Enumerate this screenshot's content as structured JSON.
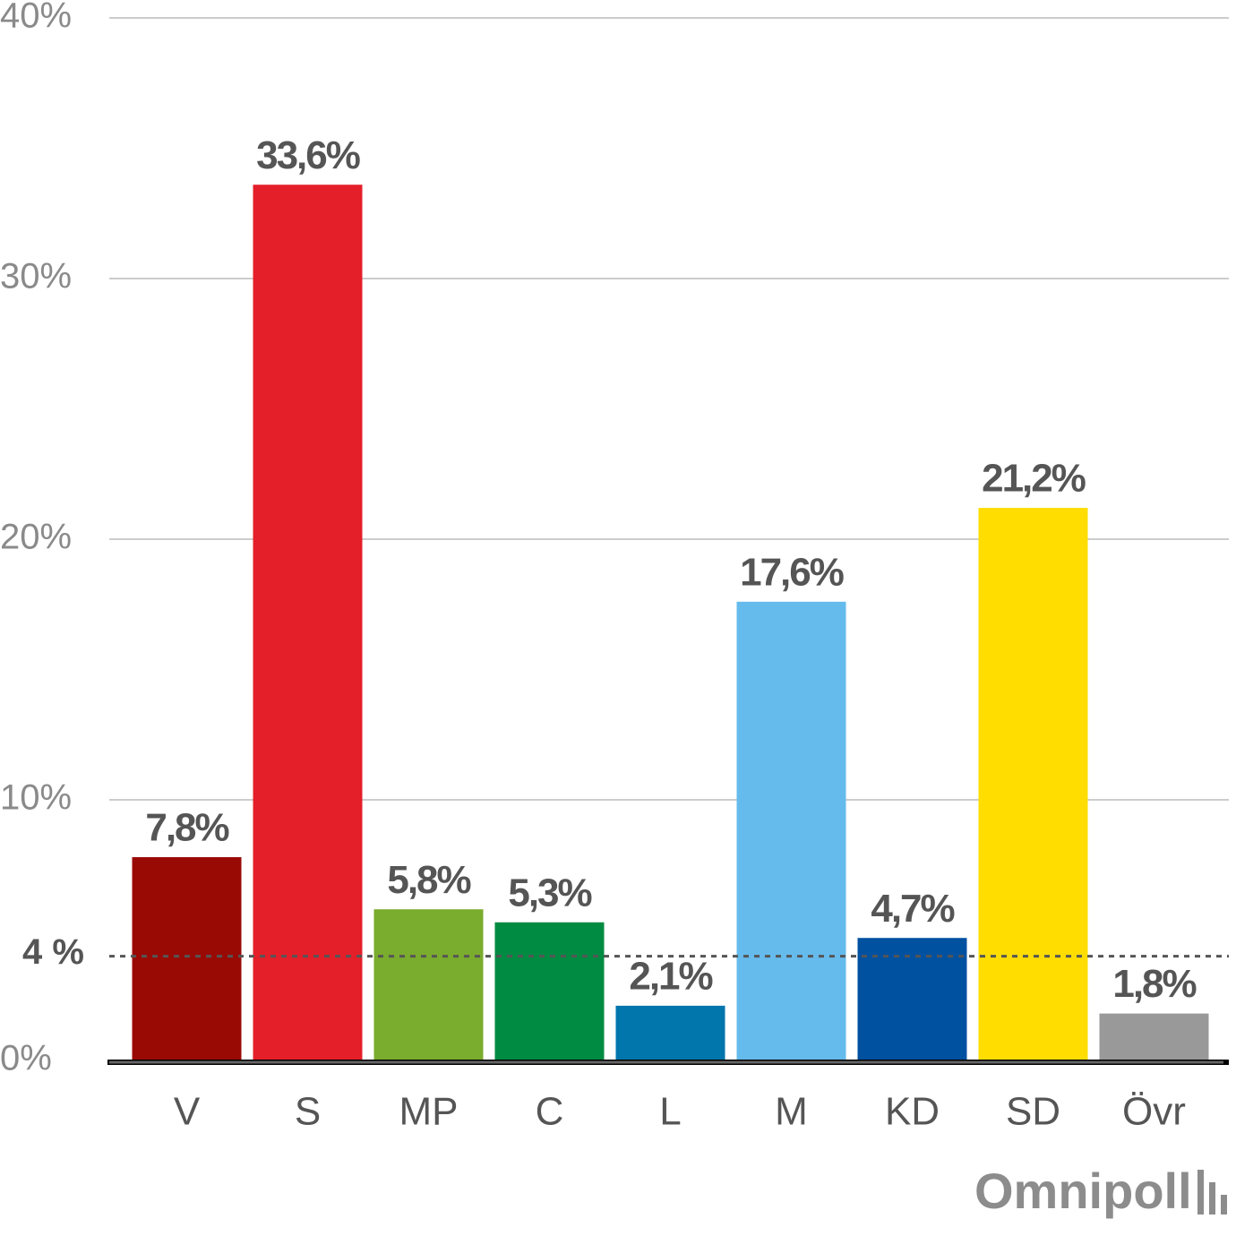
{
  "chart_data": {
    "type": "bar",
    "categories": [
      "V",
      "S",
      "MP",
      "C",
      "L",
      "M",
      "KD",
      "SD",
      "Övr"
    ],
    "values": [
      7.8,
      33.6,
      5.8,
      5.3,
      2.1,
      17.6,
      4.7,
      21.2,
      1.8
    ],
    "value_labels": [
      "7,8%",
      "33,6%",
      "5,8%",
      "5,3%",
      "2,1%",
      "17,6%",
      "4,7%",
      "21,2%",
      "1,8%"
    ],
    "colors": [
      "#990a05",
      "#e41f2a",
      "#7aac2e",
      "#008b42",
      "#0076ad",
      "#66bbed",
      "#0051a0",
      "#ffdd00",
      "#999999"
    ],
    "ylim": [
      0,
      40
    ],
    "yticks": [
      {
        "value": 0,
        "label": "0%"
      },
      {
        "value": 10,
        "label": "10%"
      },
      {
        "value": 20,
        "label": "20%"
      },
      {
        "value": 30,
        "label": "30%"
      },
      {
        "value": 40,
        "label": "40%"
      }
    ],
    "threshold": {
      "value": 4,
      "label": "4 %"
    },
    "grid": true,
    "logo": "Omnipoll"
  }
}
